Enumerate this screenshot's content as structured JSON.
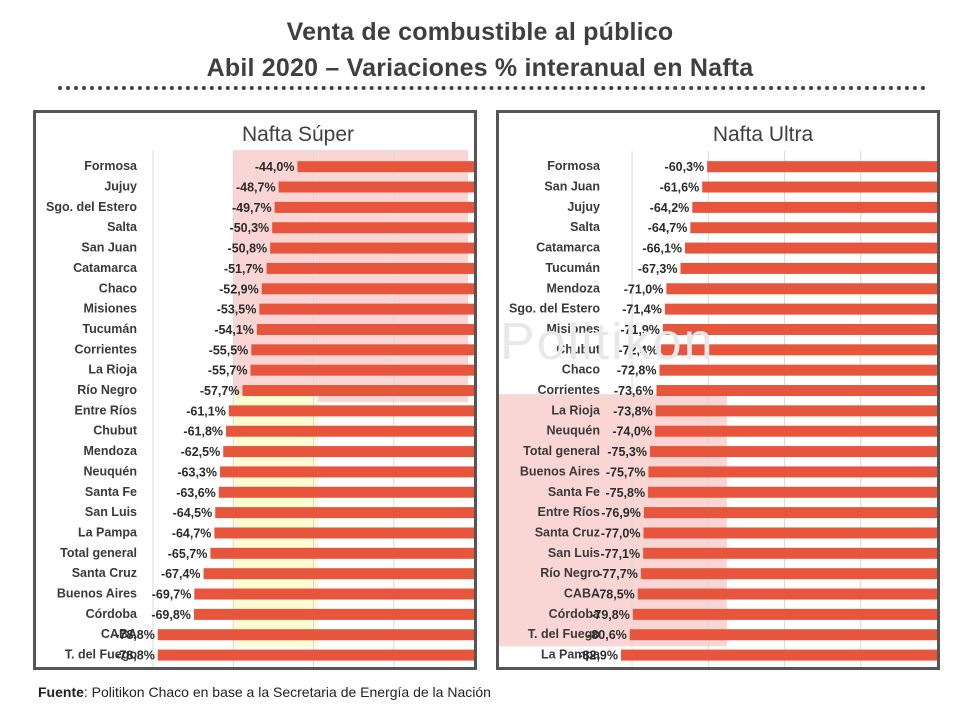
{
  "title_line1": "Venta de combustible al público",
  "title_line2": "Abil 2020 – Variaciones % interanual en Nafta",
  "watermark": "Politikon",
  "source_label": "Fuente",
  "source_text": ": Politikon Chaco en base a la Secretaria de Energía de la Nación",
  "colors": {
    "bar": "#e8553d",
    "highlight_red": "#f9d6d3",
    "highlight_yellow": "#fdfbd2",
    "grid": "#d9d9d9"
  },
  "chart_data": [
    {
      "type": "bar",
      "orientation": "horizontal",
      "title": "Nafta Súper",
      "unit": "%",
      "xlim": [
        -80,
        0
      ],
      "grid": true,
      "categories": [
        "Formosa",
        "Jujuy",
        "Sgo. del Estero",
        "Salta",
        "San Juan",
        "Catamarca",
        "Chaco",
        "Misiones",
        "Tucumán",
        "Corrientes",
        "La Rioja",
        "Río Negro",
        "Entre Ríos",
        "Chubut",
        "Mendoza",
        "Neuquén",
        "Santa Fe",
        "San Luis",
        "La Pampa",
        "Total general",
        "Santa Cruz",
        "Buenos Aires",
        "Córdoba",
        "CABA",
        "T. del Fuego"
      ],
      "values": [
        -44.0,
        -48.7,
        -49.7,
        -50.3,
        -50.8,
        -51.7,
        -52.9,
        -53.5,
        -54.1,
        -55.5,
        -55.7,
        -57.7,
        -61.1,
        -61.8,
        -62.5,
        -63.3,
        -63.6,
        -64.5,
        -64.7,
        -65.7,
        -67.4,
        -69.7,
        -69.8,
        -78.8,
        -78.8
      ],
      "data_labels": [
        "-44,0%",
        "-48,7%",
        "-49,7%",
        "-50,3%",
        "-50,8%",
        "-51,7%",
        "-52,9%",
        "-53,5%",
        "-54,1%",
        "-55,5%",
        "-55,7%",
        "-57,7%",
        "-61,1%",
        "-61,8%",
        "-62,5%",
        "-63,3%",
        "-63,6%",
        "-64,5%",
        "-64,7%",
        "-65,7%",
        "-67,4%",
        "-69,7%",
        "-69,8%",
        "-78,8%",
        "-78,8%"
      ],
      "highlights": [
        {
          "color": "red",
          "rows": [
            0,
            11
          ]
        },
        {
          "color": "yellow",
          "rows": [
            12,
            23
          ]
        }
      ]
    },
    {
      "type": "bar",
      "orientation": "horizontal",
      "title": "Nafta Ultra",
      "unit": "%",
      "xlim": [
        -85,
        0
      ],
      "grid": true,
      "categories": [
        "Formosa",
        "San Juan",
        "Jujuy",
        "Salta",
        "Catamarca",
        "Tucumán",
        "Mendoza",
        "Sgo. del Estero",
        "Misiones",
        "Chubut",
        "Chaco",
        "Corrientes",
        "La Rioja",
        "Neuquén",
        "Total general",
        "Buenos Aires",
        "Santa Fe",
        "Entre Ríos",
        "Santa Cruz",
        "San Luis",
        "Río Negro",
        "CABA",
        "Córdoba",
        "T. del Fuego",
        "La Pampa"
      ],
      "values": [
        -60.3,
        -61.6,
        -64.2,
        -64.7,
        -66.1,
        -67.3,
        -71.0,
        -71.4,
        -71.9,
        -72.4,
        -72.8,
        -73.6,
        -73.8,
        -74.0,
        -75.3,
        -75.7,
        -75.8,
        -76.9,
        -77.0,
        -77.1,
        -77.7,
        -78.5,
        -79.8,
        -80.6,
        -82.9
      ],
      "data_labels": [
        "-60,3%",
        "-61,6%",
        "-64,2%",
        "-64,7%",
        "-66,1%",
        "-67,3%",
        "-71,0%",
        "-71,4%",
        "-71,9%",
        "-72,4%",
        "-72,8%",
        "-73,6%",
        "-73,8%",
        "-74,0%",
        "-75,3%",
        "-75,7%",
        "-75,8%",
        "-76,9%",
        "-77,0%",
        "-77,1%",
        "-77,7%",
        "-78,5%",
        "-79,8%",
        "-80,6%",
        "-82,9%"
      ],
      "highlights": [
        {
          "color": "red",
          "rows": [
            12,
            23
          ]
        }
      ]
    }
  ]
}
